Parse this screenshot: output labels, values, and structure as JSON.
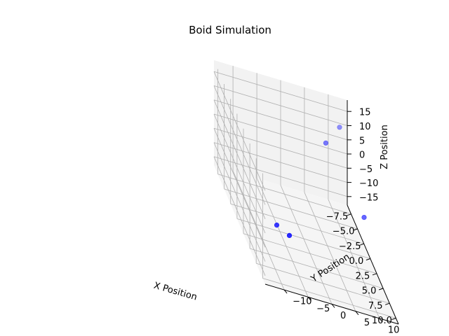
{
  "chart_data": {
    "type": "scatter",
    "projection": "3d",
    "title": "Boid Simulation",
    "xlabel": "X Position",
    "ylabel": "Y Position",
    "zlabel": "Z Position",
    "xlim": [
      -9,
      11
    ],
    "ylim": [
      -14,
      14
    ],
    "zlim": [
      -18,
      19
    ],
    "xticks": [
      "−7.5",
      "−5.0",
      "−2.5",
      "0.0",
      "2.5",
      "5.0",
      "7.5",
      "10.0"
    ],
    "yticks": [
      "−10",
      "−5",
      "0",
      "5",
      "10"
    ],
    "zticks": [
      "−15",
      "−10",
      "−5",
      "0",
      "5",
      "10",
      "15"
    ],
    "grid": true,
    "marker_color": "#0000ff",
    "points": [
      {
        "x": -5.5,
        "y": 10.5,
        "z": 15.0
      },
      {
        "x": -2.5,
        "y": 6.0,
        "z": 13.5
      },
      {
        "x": 5.0,
        "y": 10.0,
        "z": 5.0
      },
      {
        "x": 6.5,
        "y": -6.5,
        "z": -6.5
      },
      {
        "x": 2.5,
        "y": -7.0,
        "z": -11.5
      }
    ]
  }
}
